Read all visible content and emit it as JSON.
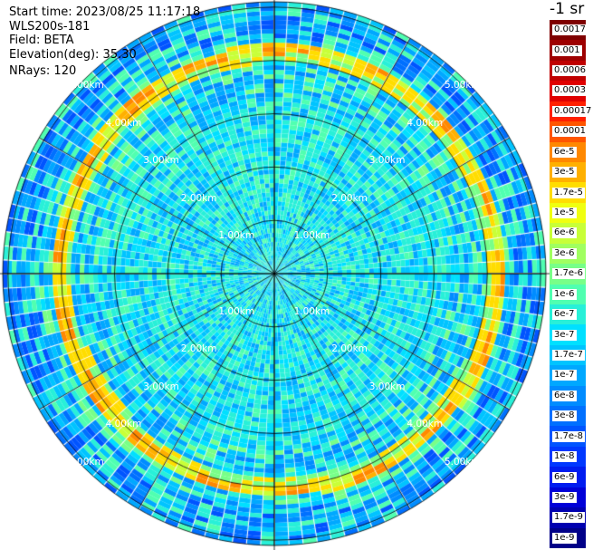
{
  "info": {
    "start_time": "Start time: 2023/08/25 11:17:18",
    "instrument": "WLS200s-181",
    "field": "Field: BETA",
    "elevation": "Elevation(deg): 35.30",
    "nrays": "NRays: 120"
  },
  "colorbar": {
    "unit": "-1 sr",
    "labels": [
      "0.0017",
      "0.001",
      "0.0006",
      "0.0003",
      "0.00017",
      "0.0001",
      "6e-5",
      "3e-5",
      "1.7e-5",
      "1e-5",
      "6e-6",
      "3e-6",
      "1.7e-6",
      "1e-6",
      "6e-7",
      "3e-7",
      "1.7e-7",
      "1e-7",
      "6e-8",
      "3e-8",
      "1.7e-8",
      "1e-8",
      "6e-9",
      "3e-9",
      "1.7e-9",
      "1e-9"
    ],
    "colors": [
      "#7f0000",
      "#9e0000",
      "#c00000",
      "#e00000",
      "#ff2000",
      "#ff5500",
      "#ff8800",
      "#ffb000",
      "#ffdd00",
      "#f0ff10",
      "#c8ff38",
      "#a0ff60",
      "#78ff88",
      "#50ffb0",
      "#28f0d8",
      "#00e0ff",
      "#00c4ff",
      "#00a8ff",
      "#008cff",
      "#0070ff",
      "#0054ff",
      "#0038ff",
      "#001cf0",
      "#0000d8",
      "#0000b0",
      "#000088"
    ]
  },
  "chart_data": {
    "type": "heatmap",
    "projection": "polar PPI",
    "field": "BETA",
    "nrays": 120,
    "range_rings_km": [
      1.0,
      2.0,
      3.0,
      4.0,
      5.0
    ],
    "ring_labels": [
      "1.00km",
      "2.00km",
      "3.00km",
      "4.00km",
      "5.00km"
    ],
    "spokes_deg": [
      0,
      30,
      60,
      90,
      120,
      150,
      180,
      210,
      240,
      270,
      300,
      330
    ],
    "max_range_km": 5.1,
    "aerosol_layer_range_km": [
      4.05,
      4.25
    ],
    "aerosol_layer_value": "3e-5 to 1e-4",
    "background_value": "1e-7 to 1e-6",
    "far_range_value": "1e-8 to 3e-8",
    "colorbar_range": [
      "1e-9",
      "0.0017"
    ]
  }
}
